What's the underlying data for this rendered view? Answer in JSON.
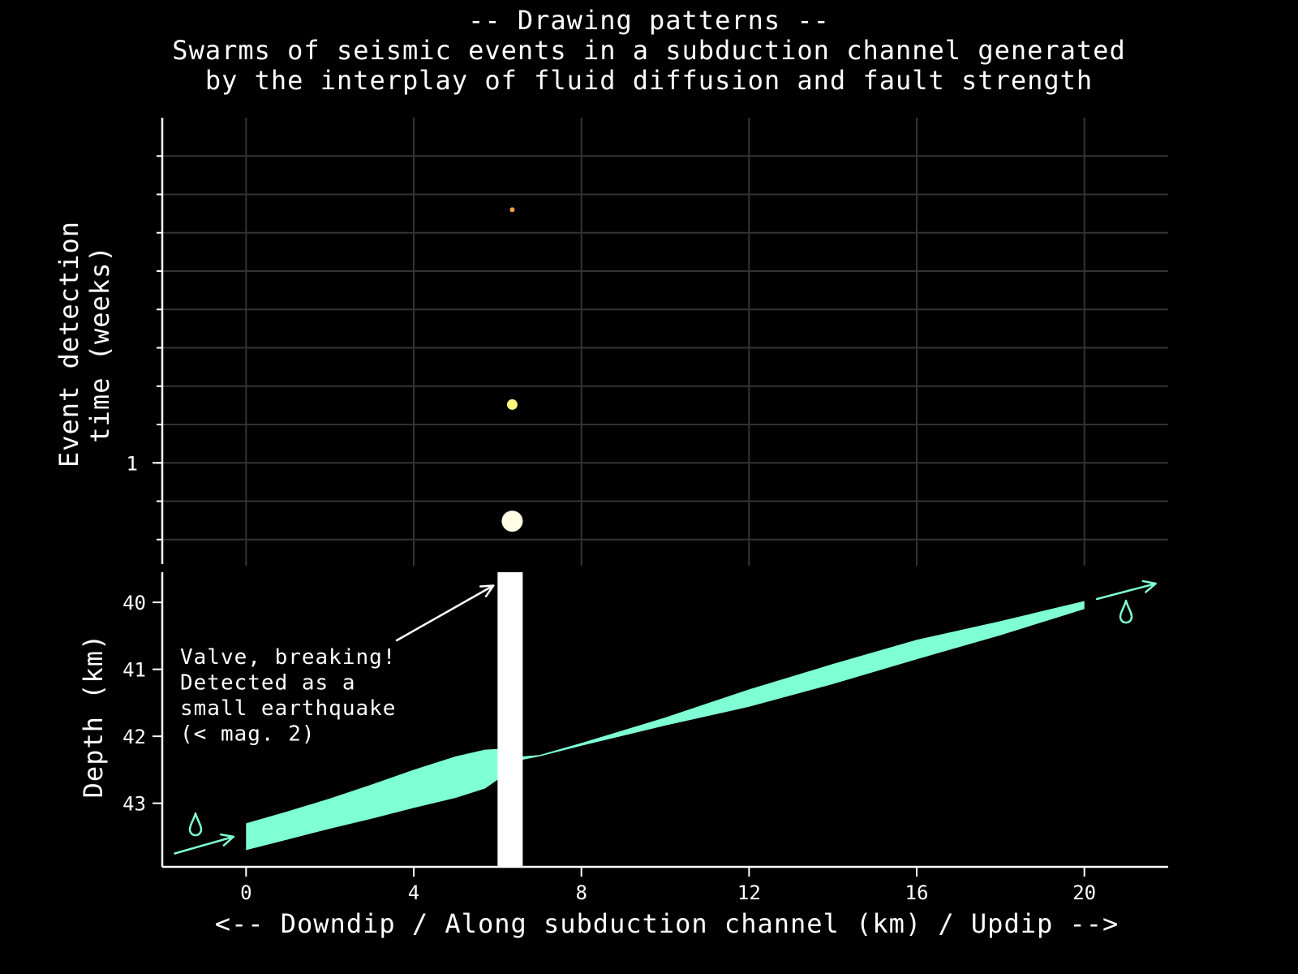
{
  "title_lines": [
    "-- Drawing patterns --",
    "Swarms of seismic events in a subduction channel generated",
    "by the interplay of fluid diffusion and fault strength"
  ],
  "colors": {
    "background": "#000000",
    "axis": "#ffffff",
    "grid": "#333333",
    "channel_fluid": "#7fffd4",
    "valve": "#ffffff",
    "event_small": "#f5a142",
    "event_medium": "#fff77a",
    "event_large": "#fffde6"
  },
  "chart_data": [
    {
      "type": "scatter",
      "ylabel_lines": [
        "Event detection",
        "time (weeks)"
      ],
      "xlim": [
        -2,
        22
      ],
      "y_tick_labels": [
        "1"
      ],
      "grid": true,
      "series": [
        {
          "points": [
            {
              "x": 6.35,
              "y": 0.62,
              "size": "large",
              "color": "#fffde6"
            },
            {
              "x": 6.35,
              "y": 1.38,
              "size": "medium",
              "color": "#fff77a"
            },
            {
              "x": 6.35,
              "y": 2.65,
              "size": "small",
              "color": "#f5a142"
            }
          ]
        }
      ]
    },
    {
      "type": "area",
      "xlabel": "<-- Downdip / Along subduction channel (km) / Updip -->",
      "ylabel": "Depth (km)",
      "xlim": [
        -2,
        22
      ],
      "ylim": [
        43.95,
        39.55
      ],
      "y_inverted": true,
      "x_ticks": [
        0,
        4,
        8,
        12,
        16,
        20
      ],
      "x_tick_labels": [
        "0",
        "4",
        "8",
        "12",
        "16",
        "20"
      ],
      "y_ticks": [
        40,
        41,
        42,
        43
      ],
      "y_tick_labels": [
        "40",
        "41",
        "42",
        "43"
      ],
      "channel": {
        "x": [
          0,
          1,
          2,
          3,
          4,
          5,
          5.7,
          6.0,
          6.2,
          6.6,
          7.0,
          8,
          10,
          12,
          14,
          16,
          18,
          20
        ],
        "top": [
          43.3,
          43.12,
          42.93,
          42.72,
          42.5,
          42.3,
          42.2,
          42.19,
          42.2,
          42.3,
          42.28,
          42.1,
          41.72,
          41.3,
          40.92,
          40.56,
          40.28,
          39.98
        ],
        "bottom": [
          43.7,
          43.54,
          43.38,
          43.23,
          43.07,
          42.92,
          42.78,
          42.65,
          42.52,
          42.35,
          42.3,
          42.14,
          41.84,
          41.56,
          41.22,
          40.85,
          40.49,
          40.1
        ]
      },
      "valve": {
        "x_range": [
          6.0,
          6.6
        ]
      },
      "annotation": {
        "lines": [
          "Valve, breaking!",
          "Detected as a",
          "small earthquake",
          "(< mag. 2)"
        ],
        "arrow_to": {
          "x": 5.9,
          "y": 39.75
        }
      },
      "flow_in": {
        "from": {
          "x": -1.7,
          "y": 43.75
        },
        "to": {
          "x": -0.3,
          "y": 43.5
        },
        "drop_icon": "droplet-icon"
      },
      "flow_out": {
        "from": {
          "x": 20.3,
          "y": 39.95
        },
        "to": {
          "x": 21.7,
          "y": 39.72
        },
        "drop_icon": "droplet-icon"
      }
    }
  ]
}
